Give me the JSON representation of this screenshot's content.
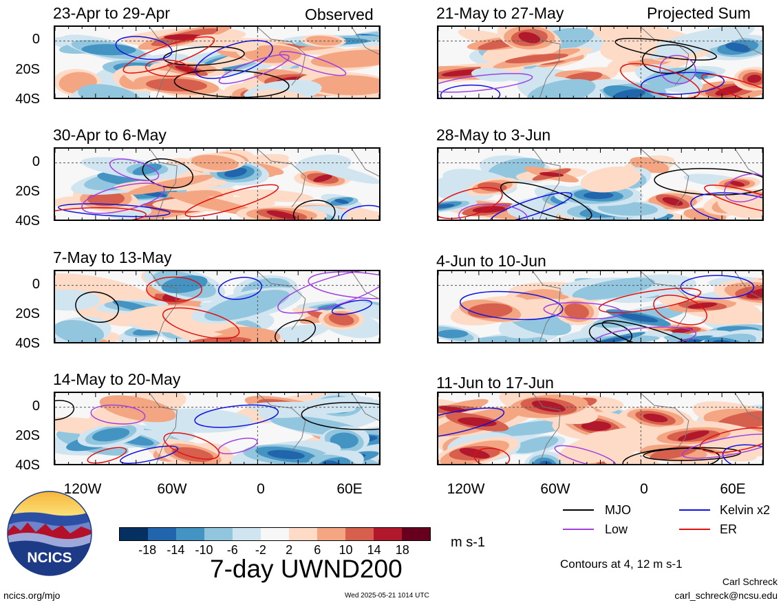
{
  "chart_data": {
    "type": "heatmap",
    "title": "7-day UWND200",
    "units": "m s-1",
    "color_scale": {
      "ticks": [
        "-18",
        "-14",
        "-10",
        "-6",
        "-2",
        "2",
        "6",
        "10",
        "14",
        "18"
      ],
      "colors": [
        "#053061",
        "#2166ac",
        "#4393c3",
        "#92c5de",
        "#d1e5f0",
        "#f7f7f7",
        "#fddbc7",
        "#f4a582",
        "#d6604d",
        "#b2182b",
        "#67001f"
      ]
    },
    "x_ticks": [
      "120W",
      "60W",
      "0",
      "60E"
    ],
    "y_ticks": [
      "0",
      "20S",
      "40S"
    ],
    "contour_note": "Contours at 4, 12 m s-1",
    "legend": [
      {
        "name": "MJO",
        "color": "#000000"
      },
      {
        "name": "Kelvin x2",
        "color": "#1010e0"
      },
      {
        "name": "Low",
        "color": "#a040e0"
      },
      {
        "name": "ER",
        "color": "#e01010"
      }
    ],
    "panels": [
      {
        "title": "23-Apr to 29-Apr",
        "tag": "Observed"
      },
      {
        "title": "30-Apr to 6-May",
        "tag": ""
      },
      {
        "title": "7-May to 13-May",
        "tag": ""
      },
      {
        "title": "14-May to 20-May",
        "tag": ""
      },
      {
        "title": "21-May to 27-May",
        "tag": "Projected Sum"
      },
      {
        "title": "28-May to 3-Jun",
        "tag": ""
      },
      {
        "title": "4-Jun to 10-Jun",
        "tag": ""
      },
      {
        "title": "11-Jun to 17-Jun",
        "tag": ""
      }
    ]
  },
  "footer": {
    "logo_text": "NCICS",
    "site": "ncics.org/mjo",
    "timestamp": "Wed 2025-05-21 1014 UTC",
    "author": "Carl Schreck",
    "email": "carl_schreck@ncsu.edu"
  }
}
